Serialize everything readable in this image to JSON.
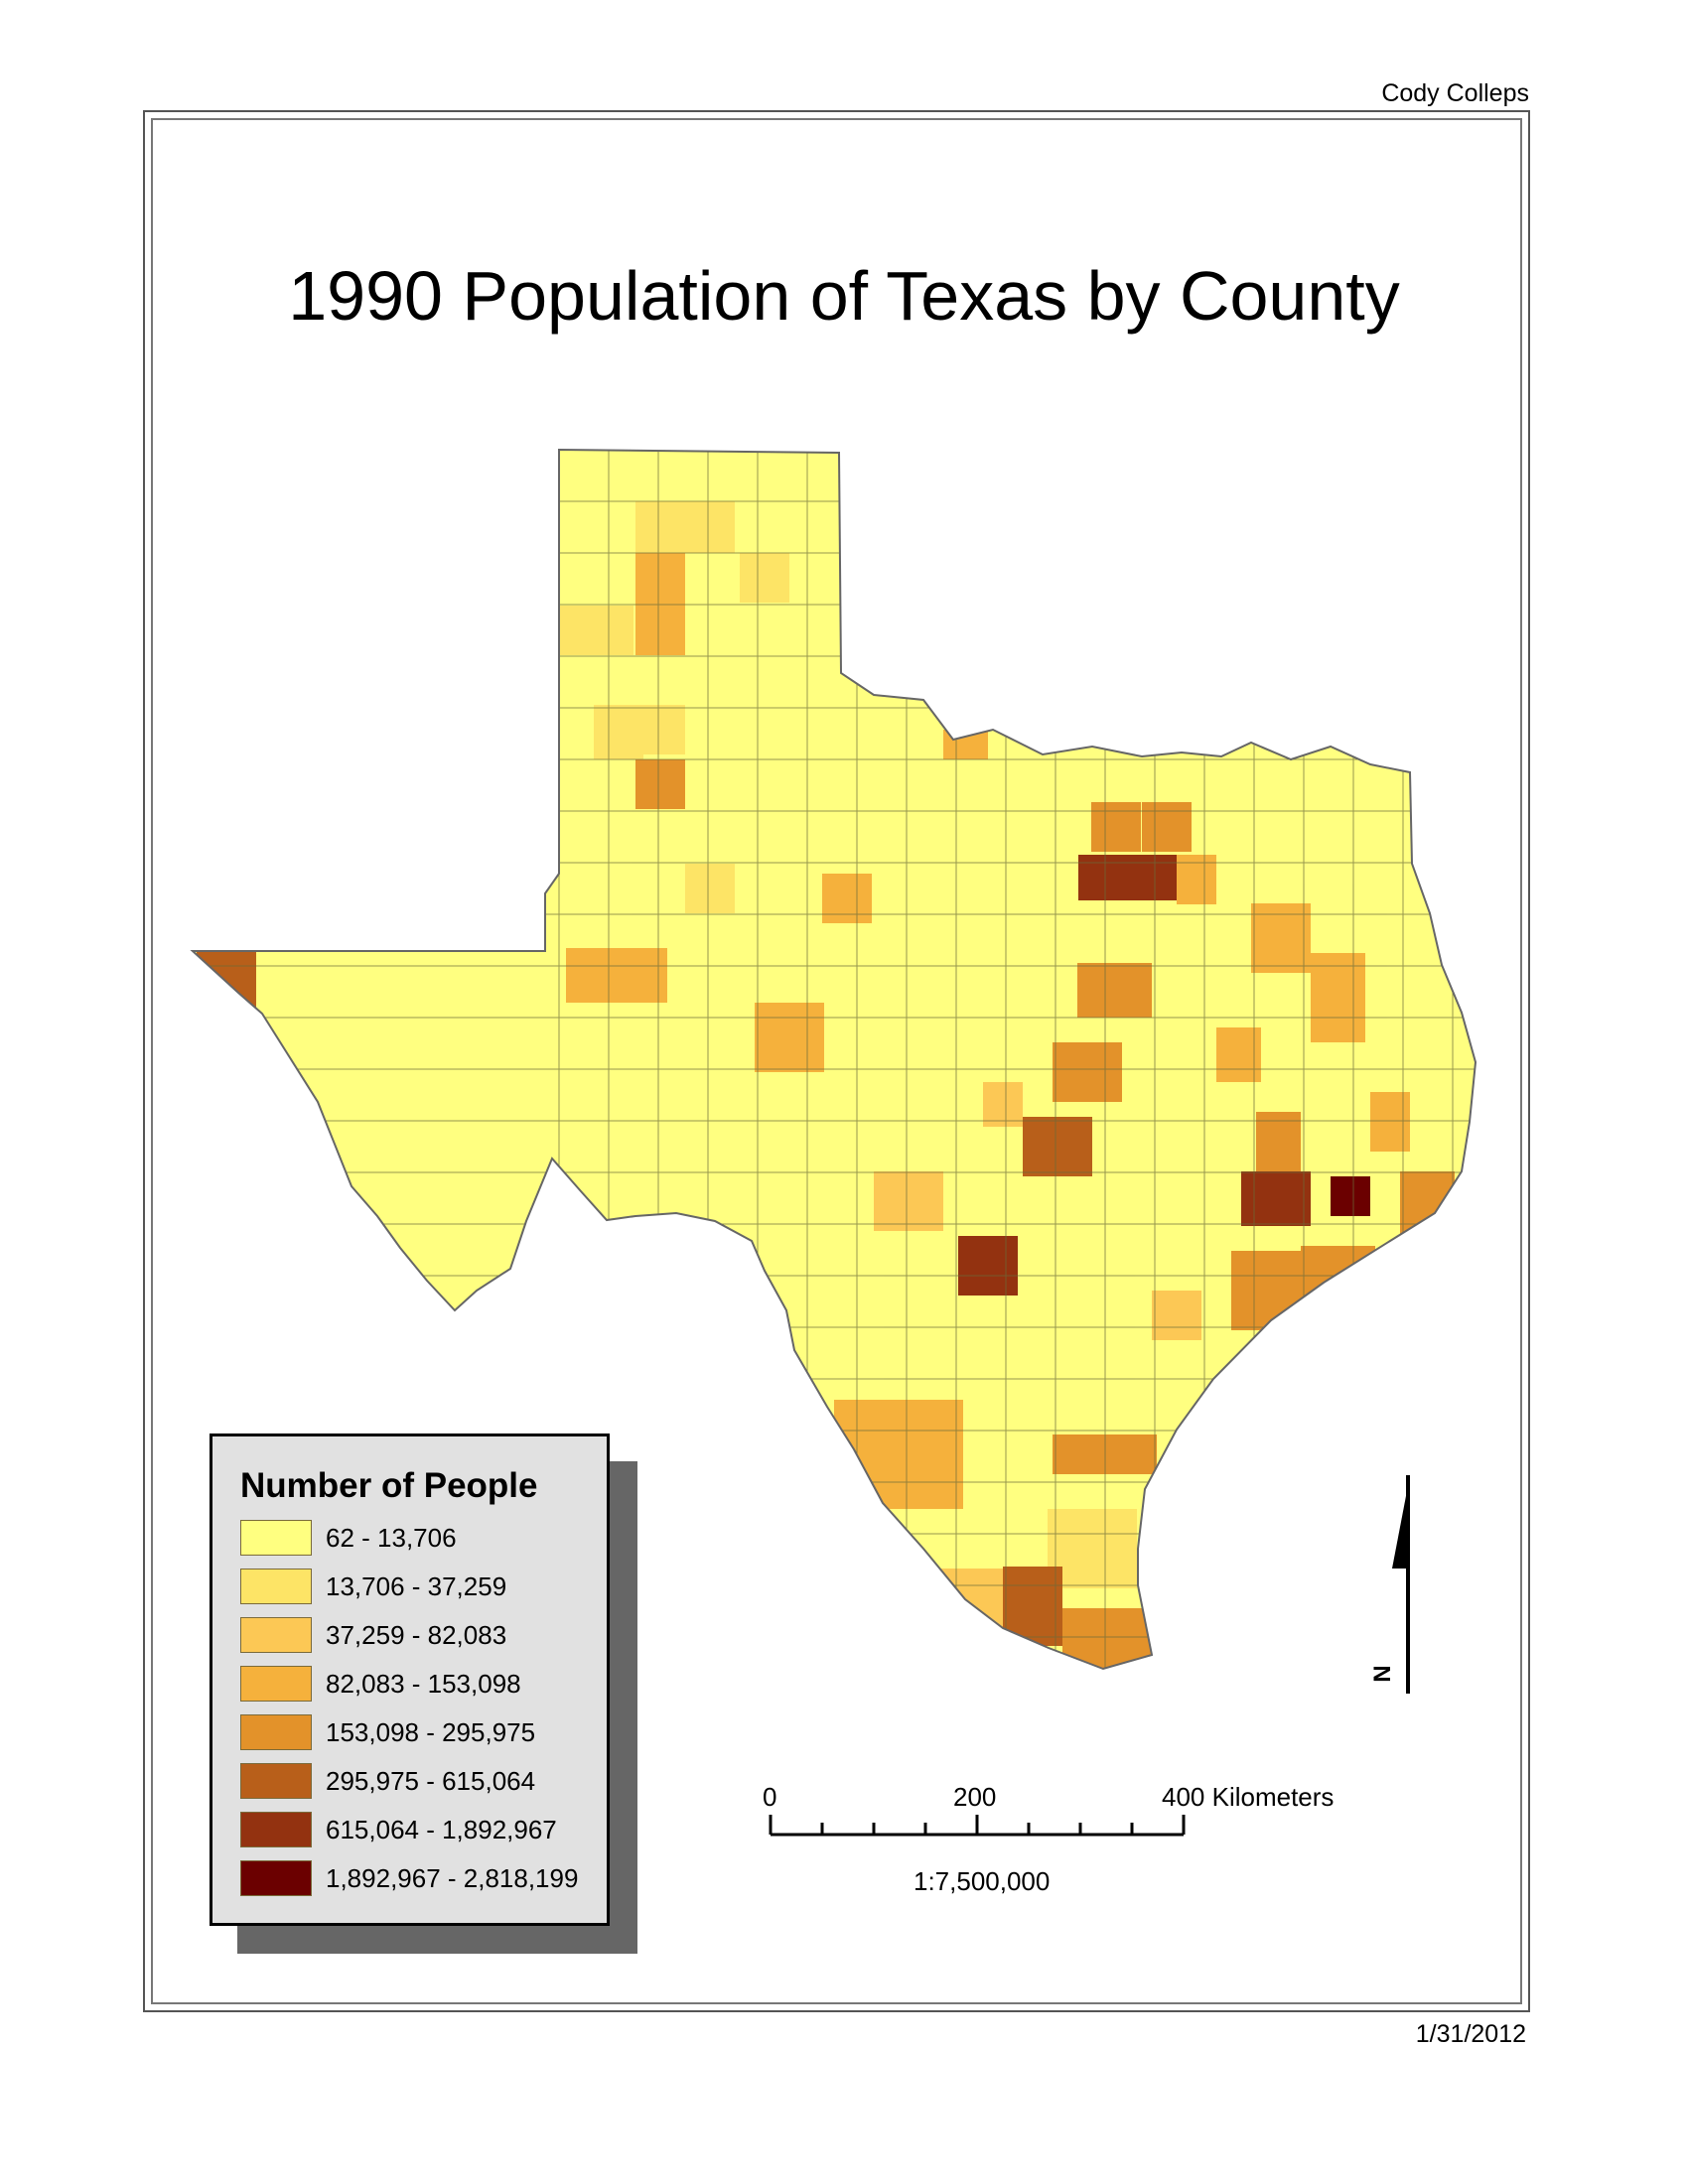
{
  "author": "Cody Colleps",
  "date": "1/31/2012",
  "title": "1990 Population of Texas by County",
  "legend": {
    "title": "Number of People",
    "classes": [
      {
        "label": "62 - 13,706",
        "color": "#ffff80"
      },
      {
        "label": "13,706 - 37,259",
        "color": "#fde466"
      },
      {
        "label": "37,259 - 82,083",
        "color": "#fcc855"
      },
      {
        "label": "82,083 - 153,098",
        "color": "#f5b13c"
      },
      {
        "label": "153,098 - 295,975",
        "color": "#e3922a"
      },
      {
        "label": "295,975 - 615,064",
        "color": "#b85f1a"
      },
      {
        "label": "615,064 - 1,892,967",
        "color": "#933210"
      },
      {
        "label": "1,892,967 - 2,818,199",
        "color": "#6b0000"
      }
    ]
  },
  "scale_bar": {
    "labels": [
      "0",
      "200",
      "400 Kilometers"
    ],
    "ratio": "1:7,500,000"
  },
  "north_arrow": {
    "letter": "N",
    "icon": "north-arrow-icon"
  }
}
